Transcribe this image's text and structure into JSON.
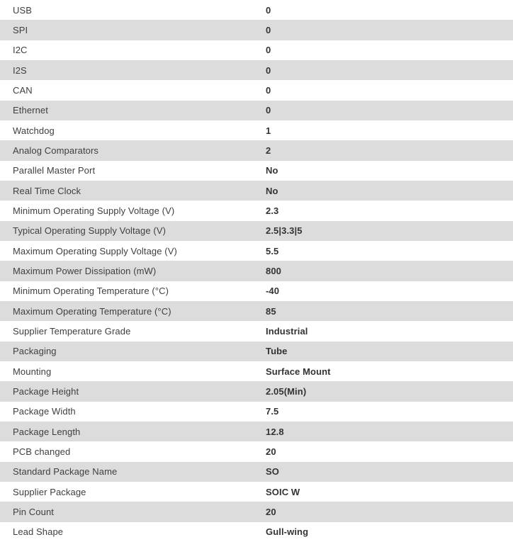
{
  "colors": {
    "row_alt": "#dcdcdc",
    "row_bg": "#ffffff",
    "label_text": "#3f3f3f",
    "value_text": "#333333"
  },
  "table": {
    "rows": [
      {
        "label": "USB",
        "value": "0"
      },
      {
        "label": "SPI",
        "value": "0"
      },
      {
        "label": "I2C",
        "value": "0"
      },
      {
        "label": "I2S",
        "value": "0"
      },
      {
        "label": "CAN",
        "value": "0"
      },
      {
        "label": "Ethernet",
        "value": "0"
      },
      {
        "label": "Watchdog",
        "value": "1"
      },
      {
        "label": "Analog Comparators",
        "value": "2"
      },
      {
        "label": "Parallel Master Port",
        "value": "No"
      },
      {
        "label": "Real Time Clock",
        "value": "No"
      },
      {
        "label": "Minimum Operating Supply Voltage (V)",
        "value": "2.3"
      },
      {
        "label": "Typical Operating Supply Voltage (V)",
        "value": "2.5|3.3|5"
      },
      {
        "label": "Maximum Operating Supply Voltage (V)",
        "value": "5.5"
      },
      {
        "label": "Maximum Power Dissipation (mW)",
        "value": "800"
      },
      {
        "label": "Minimum Operating Temperature (°C)",
        "value": "-40"
      },
      {
        "label": "Maximum Operating Temperature (°C)",
        "value": "85"
      },
      {
        "label": "Supplier Temperature Grade",
        "value": "Industrial"
      },
      {
        "label": "Packaging",
        "value": "Tube"
      },
      {
        "label": "Mounting",
        "value": "Surface Mount"
      },
      {
        "label": "Package Height",
        "value": "2.05(Min)"
      },
      {
        "label": "Package Width",
        "value": "7.5"
      },
      {
        "label": "Package Length",
        "value": "12.8"
      },
      {
        "label": "PCB changed",
        "value": "20"
      },
      {
        "label": "Standard Package Name",
        "value": "SO"
      },
      {
        "label": "Supplier Package",
        "value": "SOIC W"
      },
      {
        "label": "Pin Count",
        "value": "20"
      },
      {
        "label": "Lead Shape",
        "value": "Gull-wing"
      }
    ]
  }
}
